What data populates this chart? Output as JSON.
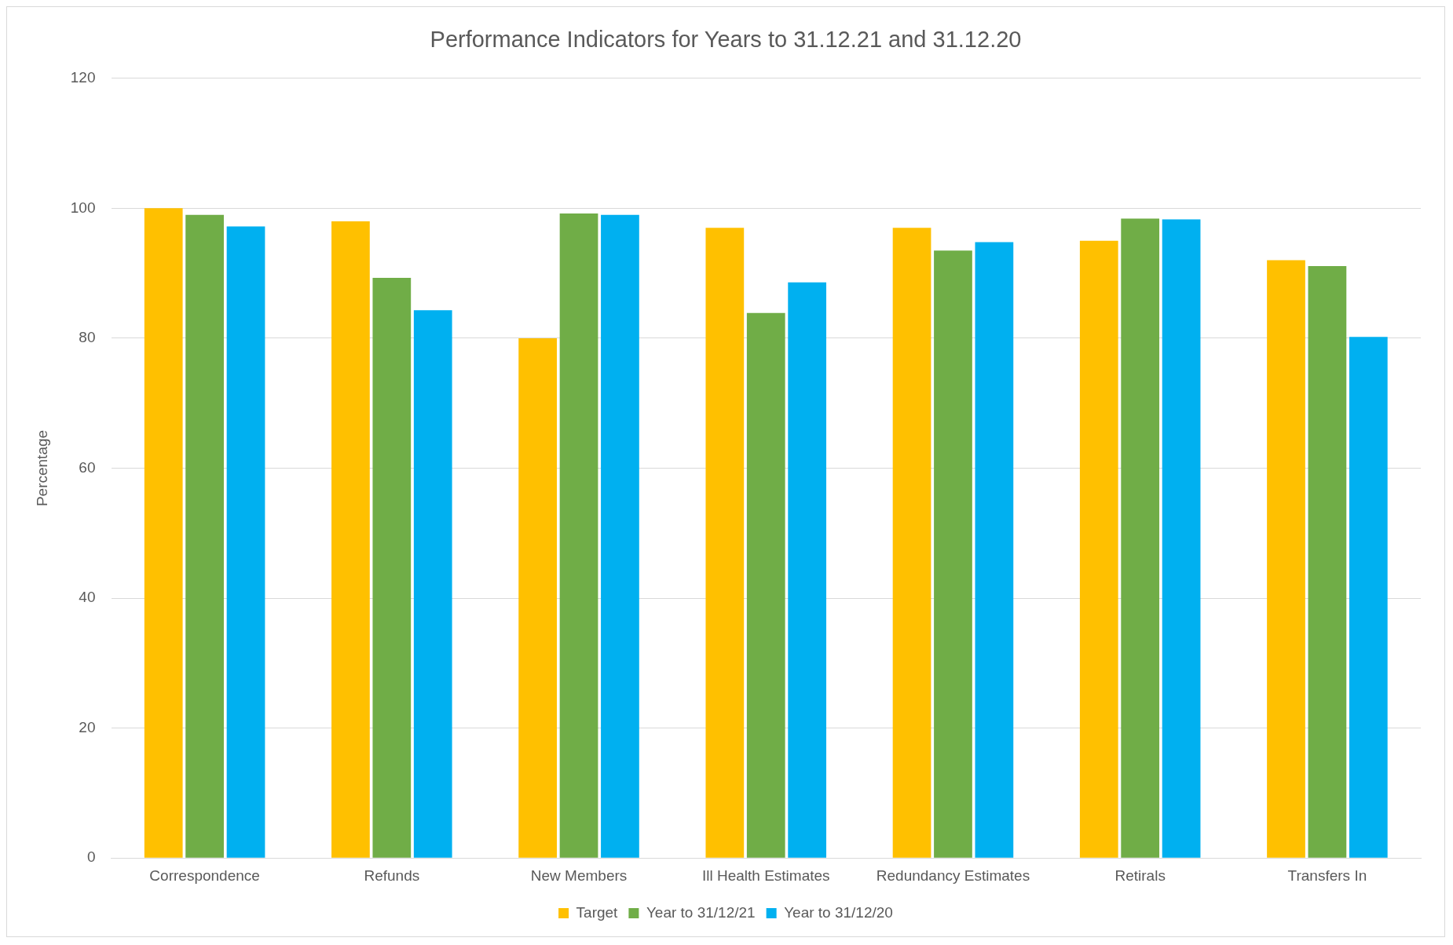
{
  "chart_data": {
    "type": "bar",
    "title": "Performance Indicators for Years to 31.12.21 and 31.12.20",
    "ylabel": "Percentage",
    "categories": [
      "Correspondence",
      "Refunds",
      "New Members",
      "Ill Health Estimates",
      "Redundancy Estimates",
      "Retirals",
      "Transfers In"
    ],
    "series": [
      {
        "name": "Target",
        "color": "#ffc000",
        "values": [
          100,
          98,
          80,
          97,
          97,
          95,
          92
        ]
      },
      {
        "name": "Year to 31/12/21",
        "color": "#70ad47",
        "values": [
          99,
          89.3,
          99.2,
          83.9,
          93.5,
          98.4,
          91.1
        ]
      },
      {
        "name": "Year to 31/12/20",
        "color": "#00b0f0",
        "values": [
          97.2,
          84.3,
          99,
          88.6,
          94.8,
          98.3,
          80.2
        ]
      }
    ],
    "ylim": [
      0,
      120
    ],
    "yticks": [
      0,
      20,
      40,
      60,
      80,
      100,
      120
    ],
    "grid": "y",
    "legend": "bottom"
  }
}
